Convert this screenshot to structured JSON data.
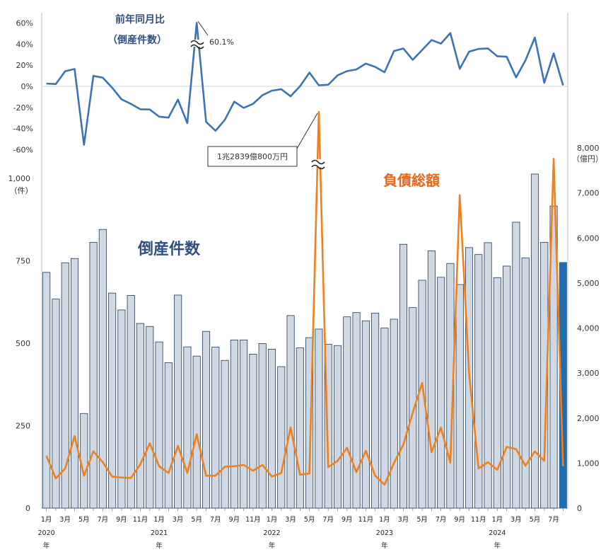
{
  "chart_data": [
    {
      "type": "line",
      "title": "前年同月比",
      "subtitle": "（倒産件数）",
      "ylim": [
        -70,
        65
      ],
      "y_ticks": [
        "60%",
        "40%",
        "20%",
        "0%",
        "-20%",
        "-40%",
        "-60%"
      ],
      "annotation": "60.1%",
      "series": [
        {
          "color": "#3a74b5",
          "values": [
            2.6,
            2.2,
            14.3,
            16.4,
            -55.4,
            9.9,
            8.2,
            -1.3,
            -12.3,
            -16.6,
            -21.7,
            -21.9,
            -28.7,
            -29.6,
            -12.6,
            -34.8,
            60.1,
            -33.6,
            -42.1,
            -31.6,
            -14.5,
            -20.4,
            -16.5,
            -8.4,
            -4.1,
            -2.7,
            -9.4,
            0.2,
            13.0,
            1.0,
            1.5,
            10.4,
            14.4,
            16.0,
            21.5,
            18.4,
            13.3,
            33.4,
            35.8,
            25.1,
            34.4,
            43.8,
            40.4,
            50.4,
            16.6,
            32.8,
            35.4,
            35.9,
            28.5,
            28.0,
            8.5,
            24.6,
            46.2,
            3.4,
            31.2,
            0.9
          ]
        }
      ]
    },
    {
      "type": "bar",
      "title": "倒産件数",
      "ylim": [
        0,
        1000
      ],
      "y_ticks": [
        "1,000",
        "750",
        "500",
        "250",
        "0"
      ],
      "y_unit": "（件）",
      "series": [
        {
          "name": "倒産件数",
          "color": "#cfd8e3",
          "stroke": "#1f3b57",
          "highlight_color": "#1f6db3",
          "values": [
            715,
            634,
            744,
            757,
            287,
            806,
            845,
            652,
            601,
            645,
            560,
            551,
            504,
            441,
            646,
            489,
            461,
            536,
            488,
            448,
            510,
            510,
            467,
            499,
            482,
            429,
            584,
            486,
            517,
            543,
            497,
            493,
            580,
            593,
            568,
            591,
            546,
            573,
            800,
            608,
            691,
            780,
            700,
            742,
            678,
            790,
            769,
            805,
            699,
            734,
            867,
            759,
            1013,
            806,
            916,
            745
          ]
        }
      ]
    },
    {
      "type": "line",
      "title": "負債総額",
      "ylim": [
        0,
        8000
      ],
      "y_ticks": [
        "8,000",
        "7,000",
        "6,000",
        "5,000",
        "4,000",
        "3,000",
        "2,000",
        "1,000",
        "0"
      ],
      "y_unit": "（億円）",
      "annotation": "1兆2839億800万円",
      "series": [
        {
          "name": "負債総額",
          "color": "#f07f1c",
          "values": [
            1160,
            660,
            880,
            1600,
            720,
            1260,
            1020,
            700,
            680,
            670,
            970,
            1440,
            930,
            780,
            1380,
            780,
            1640,
            720,
            720,
            920,
            930,
            960,
            830,
            960,
            700,
            780,
            1790,
            740,
            770,
            8800,
            910,
            1050,
            1340,
            800,
            1270,
            720,
            520,
            1000,
            1410,
            2120,
            2780,
            1240,
            1790,
            1010,
            6950,
            2990,
            880,
            1020,
            850,
            1360,
            1310,
            940,
            1260,
            1050,
            7760,
            930
          ]
        }
      ]
    }
  ],
  "x_axis": {
    "month_labels": [
      "1月",
      "",
      "3月",
      "",
      "5月",
      "",
      "7月",
      "",
      "9月",
      "",
      "11月",
      "",
      "1月",
      "",
      "3月",
      "",
      "5月",
      "",
      "7月",
      "",
      "9月",
      "",
      "11月",
      "",
      "1月",
      "",
      "3月",
      "",
      "5月",
      "",
      "7月",
      "",
      "9月",
      "",
      "11月",
      "",
      "1月",
      "",
      "3月",
      "",
      "5月",
      "",
      "7月",
      "",
      "9月",
      "",
      "11月",
      "",
      "1月",
      "",
      "3月",
      "",
      "5月",
      "",
      "7月",
      ""
    ],
    "years": [
      {
        "label": "2020",
        "suffix": "年",
        "index": 0
      },
      {
        "label": "2021",
        "suffix": "年",
        "index": 12
      },
      {
        "label": "2022",
        "suffix": "年",
        "index": 24
      },
      {
        "label": "2023",
        "suffix": "年",
        "index": 36
      },
      {
        "label": "2024",
        "suffix": "年",
        "index": 48
      }
    ]
  }
}
